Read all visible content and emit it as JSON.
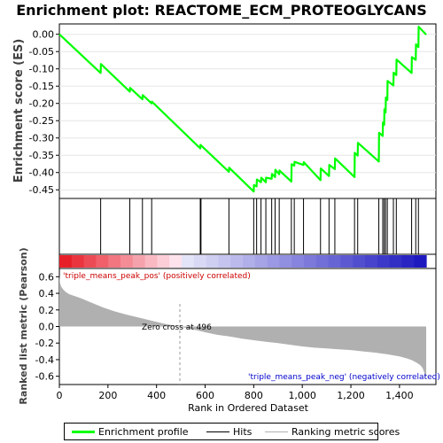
{
  "chart_data": [
    {
      "type": "line",
      "title": "Enrichment plot: REACTOME_ECM_PROTEOGLYCANS",
      "ylabel": "Enrichment score (ES)",
      "ylim": [
        -0.475,
        0.03
      ],
      "xlim": [
        0,
        1550
      ],
      "yticks": [
        0.0,
        -0.05,
        -0.1,
        -0.15,
        -0.2,
        -0.25,
        -0.3,
        -0.35,
        -0.4,
        -0.45
      ],
      "ytick_labels": [
        "0.00",
        "-0.05",
        "-0.10",
        "-0.15",
        "-0.20",
        "-0.25",
        "-0.30",
        "-0.35",
        "-0.40",
        "-0.45"
      ],
      "series": [
        {
          "name": "Enrichment profile",
          "color": "#00ff00",
          "x": [
            0,
            170,
            171,
            290,
            291,
            342,
            343,
            380,
            381,
            580,
            581,
            698,
            699,
            800,
            801,
            812,
            813,
            830,
            831,
            850,
            851,
            874,
            875,
            888,
            889,
            905,
            906,
            955,
            956,
            967,
            968,
            1005,
            1006,
            1075,
            1076,
            1110,
            1111,
            1134,
            1135,
            1215,
            1216,
            1228,
            1229,
            1315,
            1316,
            1331,
            1332,
            1337,
            1338,
            1343,
            1344,
            1350,
            1351,
            1375,
            1376,
            1387,
            1388,
            1450,
            1451,
            1467,
            1468,
            1478,
            1479,
            1510
          ],
          "y": [
            0.0,
            -0.112,
            -0.086,
            -0.166,
            -0.155,
            -0.188,
            -0.176,
            -0.2,
            -0.195,
            -0.33,
            -0.32,
            -0.398,
            -0.386,
            -0.455,
            -0.436,
            -0.44,
            -0.42,
            -0.428,
            -0.415,
            -0.428,
            -0.415,
            -0.418,
            -0.404,
            -0.413,
            -0.392,
            -0.405,
            -0.394,
            -0.426,
            -0.376,
            -0.38,
            -0.369,
            -0.378,
            -0.37,
            -0.422,
            -0.388,
            -0.41,
            -0.378,
            -0.39,
            -0.359,
            -0.413,
            -0.343,
            -0.351,
            -0.314,
            -0.368,
            -0.285,
            -0.294,
            -0.255,
            -0.262,
            -0.217,
            -0.226,
            -0.183,
            -0.19,
            -0.135,
            -0.148,
            -0.111,
            -0.118,
            -0.073,
            -0.112,
            -0.066,
            -0.074,
            -0.029,
            -0.037,
            0.022,
            -0.001
          ]
        }
      ]
    },
    {
      "type": "scatter",
      "name": "Hits",
      "hit_positions": [
        170,
        290,
        342,
        380,
        580,
        583,
        698,
        800,
        812,
        830,
        850,
        874,
        888,
        905,
        955,
        967,
        1005,
        1075,
        1110,
        1134,
        1215,
        1228,
        1315,
        1331,
        1337,
        1343,
        1350,
        1375,
        1387,
        1450,
        1467,
        1478
      ],
      "color": "#000000"
    },
    {
      "type": "area",
      "ylabel": "Ranked list metric (Pearson)",
      "xlabel": "Rank in Ordered Dataset",
      "ylim": [
        -0.7,
        0.7
      ],
      "xlim": [
        0,
        1550
      ],
      "yticks": [
        0.6,
        0.4,
        0.2,
        0.0,
        -0.2,
        -0.4,
        -0.6
      ],
      "ytick_labels": [
        "0.6",
        "0.4",
        "0.2",
        "0.0",
        "-0.2",
        "-0.4",
        "-0.6"
      ],
      "xticks": [
        0,
        200,
        400,
        600,
        800,
        1000,
        1200,
        1400
      ],
      "xtick_labels": [
        "0",
        "200",
        "400",
        "600",
        "800",
        "1,000",
        "1,200",
        "1,400"
      ],
      "series": [
        {
          "name": "Ranking metric scores",
          "color": "#b0b0b0",
          "x": [
            0,
            3,
            8,
            15,
            25,
            40,
            60,
            90,
            130,
            180,
            230,
            280,
            330,
            380,
            430,
            470,
            496,
            550,
            600,
            650,
            700,
            750,
            800,
            850,
            900,
            950,
            1000,
            1050,
            1100,
            1150,
            1200,
            1250,
            1300,
            1350,
            1400,
            1430,
            1450,
            1470,
            1485,
            1495,
            1500,
            1505,
            1510
          ],
          "y": [
            0.62,
            0.52,
            0.48,
            0.45,
            0.42,
            0.39,
            0.37,
            0.34,
            0.29,
            0.23,
            0.18,
            0.14,
            0.105,
            0.07,
            0.035,
            0.012,
            0.0,
            -0.035,
            -0.07,
            -0.1,
            -0.12,
            -0.145,
            -0.165,
            -0.185,
            -0.2,
            -0.22,
            -0.24,
            -0.255,
            -0.265,
            -0.275,
            -0.285,
            -0.3,
            -0.315,
            -0.335,
            -0.36,
            -0.385,
            -0.405,
            -0.435,
            -0.465,
            -0.5,
            -0.54,
            -0.58,
            -0.63
          ]
        }
      ],
      "annotations": [
        {
          "text": "'triple_means_peak_pos' (positively correlated)",
          "color": "#cc0000"
        },
        {
          "text": "Zero cross at 496",
          "color": "#000000",
          "x": 496
        },
        {
          "text": "'triple_means_peak_neg' (negatively correlated)",
          "color": "#0000cc"
        }
      ]
    }
  ],
  "legend": {
    "items": [
      {
        "label": "Enrichment profile",
        "color": "#00ff00"
      },
      {
        "label": "Hits",
        "color": "#000000"
      },
      {
        "label": "Ranking metric scores",
        "color": "#b0b0b0"
      }
    ]
  }
}
